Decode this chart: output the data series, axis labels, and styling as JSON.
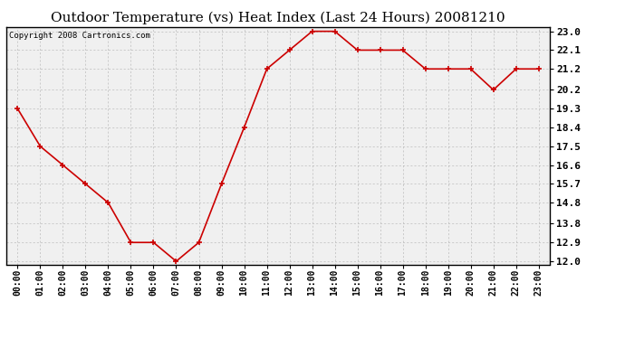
{
  "title": "Outdoor Temperature (vs) Heat Index (Last 24 Hours) 20081210",
  "copyright": "Copyright 2008 Cartronics.com",
  "x_labels": [
    "00:00",
    "01:00",
    "02:00",
    "03:00",
    "04:00",
    "05:00",
    "06:00",
    "07:00",
    "08:00",
    "09:00",
    "10:00",
    "11:00",
    "12:00",
    "13:00",
    "14:00",
    "15:00",
    "16:00",
    "17:00",
    "18:00",
    "19:00",
    "20:00",
    "21:00",
    "22:00",
    "23:00"
  ],
  "y_values": [
    19.3,
    17.5,
    16.6,
    15.7,
    14.8,
    12.9,
    12.9,
    12.0,
    12.9,
    15.7,
    18.4,
    21.2,
    22.1,
    23.0,
    23.0,
    22.1,
    22.1,
    22.1,
    21.2,
    21.2,
    21.2,
    20.2,
    21.2,
    21.2
  ],
  "y_ticks": [
    12.0,
    12.9,
    13.8,
    14.8,
    15.7,
    16.6,
    17.5,
    18.4,
    19.3,
    20.2,
    21.2,
    22.1,
    23.0
  ],
  "ylim": [
    11.85,
    23.2
  ],
  "line_color": "#cc0000",
  "marker": "+",
  "marker_size": 5,
  "marker_color": "#cc0000",
  "bg_color": "#ffffff",
  "plot_bg_color": "#f0f0f0",
  "grid_color": "#bbbbbb",
  "title_fontsize": 11,
  "tick_fontsize": 7,
  "copyright_fontsize": 6.5
}
